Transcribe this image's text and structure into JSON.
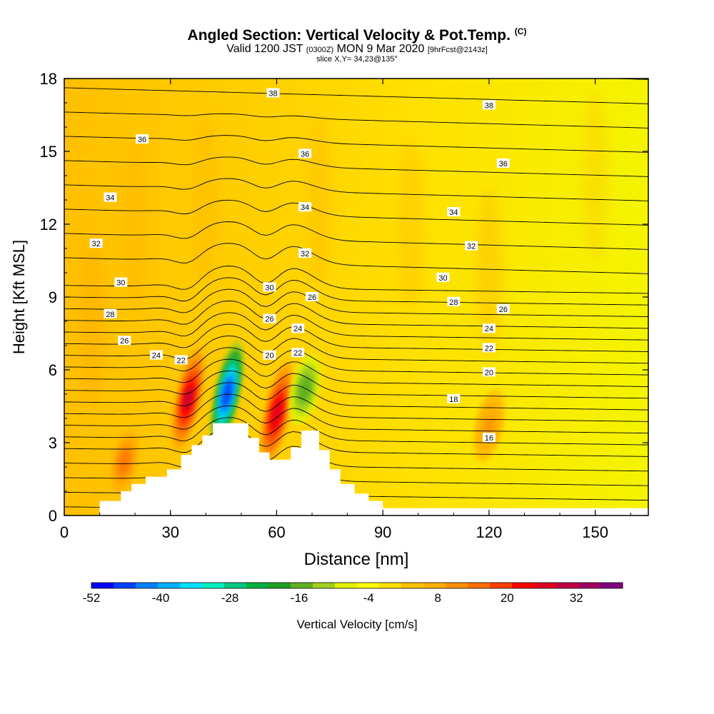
{
  "title": {
    "main": "Angled Section: Vertical Velocity & Pot.Temp.",
    "main_units": "(C)",
    "line2_a": "Valid 1200 JST",
    "line2_b": "(0300Z)",
    "line2_c": "MON 9 Mar 2020",
    "line2_d": "[9hrFcst@2143z]",
    "line3": "slice X,Y= 34,23@135°"
  },
  "chart_data": {
    "type": "heatmap",
    "xlabel": "Distance [nm]",
    "ylabel": "Height [Kft MSL]",
    "xlim": [
      0,
      165
    ],
    "ylim": [
      0,
      18
    ],
    "xticks": [
      0,
      30,
      60,
      90,
      120,
      150
    ],
    "yticks": [
      0,
      3,
      6,
      9,
      12,
      15,
      18
    ],
    "colorbar": {
      "label": "Vertical Velocity [cm/s]",
      "tick_labels": [
        "-52",
        "-40",
        "-28",
        "-16",
        "-4",
        "8",
        "20",
        "32"
      ],
      "tick_values": [
        -52,
        -40,
        -28,
        -16,
        -4,
        8,
        20,
        32
      ],
      "range": [
        -52,
        40
      ],
      "step": 4,
      "colors": [
        "#0000ff",
        "#0040ff",
        "#0080ff",
        "#00b0ff",
        "#00e0ff",
        "#00f0c0",
        "#00c880",
        "#00b040",
        "#20a020",
        "#60b020",
        "#a0d020",
        "#e0f000",
        "#ffff00",
        "#ffe000",
        "#ffc000",
        "#ffb000",
        "#ff9000",
        "#ff7000",
        "#ff4000",
        "#ff0000",
        "#e00020",
        "#c00040",
        "#a00060",
        "#800080"
      ]
    },
    "terrain_profile": {
      "x": [
        0,
        10,
        16,
        19,
        23,
        29,
        33,
        36,
        39,
        42,
        48,
        52,
        55,
        58,
        61,
        64,
        67,
        72,
        75,
        78,
        82,
        86,
        90,
        165
      ],
      "height": [
        0,
        0.6,
        1.0,
        1.3,
        1.6,
        1.9,
        2.5,
        2.9,
        3.3,
        3.8,
        3.8,
        3.2,
        2.6,
        2.3,
        2.3,
        2.8,
        3.5,
        2.7,
        1.9,
        1.3,
        0.9,
        0.6,
        0.3,
        0.3
      ]
    },
    "theta_contours": [
      {
        "label": "16",
        "positions": [
          [
            120,
            3.2
          ]
        ]
      },
      {
        "label": "18",
        "positions": [
          [
            110,
            4.8
          ]
        ]
      },
      {
        "label": "20",
        "positions": [
          [
            58,
            6.6
          ],
          [
            120,
            5.9
          ]
        ]
      },
      {
        "label": "22",
        "positions": [
          [
            33,
            6.4
          ],
          [
            66,
            6.7
          ],
          [
            120,
            6.9
          ]
        ]
      },
      {
        "label": "24",
        "positions": [
          [
            26,
            6.6
          ],
          [
            66,
            7.7
          ],
          [
            120,
            7.7
          ]
        ]
      },
      {
        "label": "26",
        "positions": [
          [
            17,
            7.2
          ],
          [
            58,
            8.1
          ],
          [
            70,
            9.0
          ],
          [
            124,
            8.5
          ]
        ]
      },
      {
        "label": "28",
        "positions": [
          [
            13,
            8.3
          ],
          [
            110,
            8.8
          ]
        ]
      },
      {
        "label": "30",
        "positions": [
          [
            16,
            9.6
          ],
          [
            58,
            9.4
          ],
          [
            107,
            9.8
          ]
        ]
      },
      {
        "label": "32",
        "positions": [
          [
            9,
            11.2
          ],
          [
            68,
            10.8
          ],
          [
            115,
            11.1
          ]
        ]
      },
      {
        "label": "34",
        "positions": [
          [
            13,
            13.1
          ],
          [
            68,
            12.7
          ],
          [
            110,
            12.5
          ]
        ]
      },
      {
        "label": "36",
        "positions": [
          [
            22,
            15.5
          ],
          [
            68,
            14.9
          ],
          [
            124,
            14.5
          ]
        ]
      },
      {
        "label": "38",
        "positions": [
          [
            59,
            17.4
          ],
          [
            120,
            16.9
          ]
        ]
      }
    ],
    "vertical_velocity_features": [
      {
        "type": "updraft",
        "center": [
          35,
          4.8
        ],
        "peak": 32
      },
      {
        "type": "downdraft",
        "center": [
          46,
          5.0
        ],
        "peak": -48
      },
      {
        "type": "updraft",
        "center": [
          60,
          4.2
        ],
        "peak": 28
      },
      {
        "type": "downdraft",
        "center": [
          68,
          5.2
        ],
        "peak": -16
      },
      {
        "type": "updraft",
        "center": [
          17,
          2.2
        ],
        "peak": 16
      },
      {
        "type": "updraft",
        "center": [
          120,
          3.7
        ],
        "peak": 12
      }
    ]
  }
}
